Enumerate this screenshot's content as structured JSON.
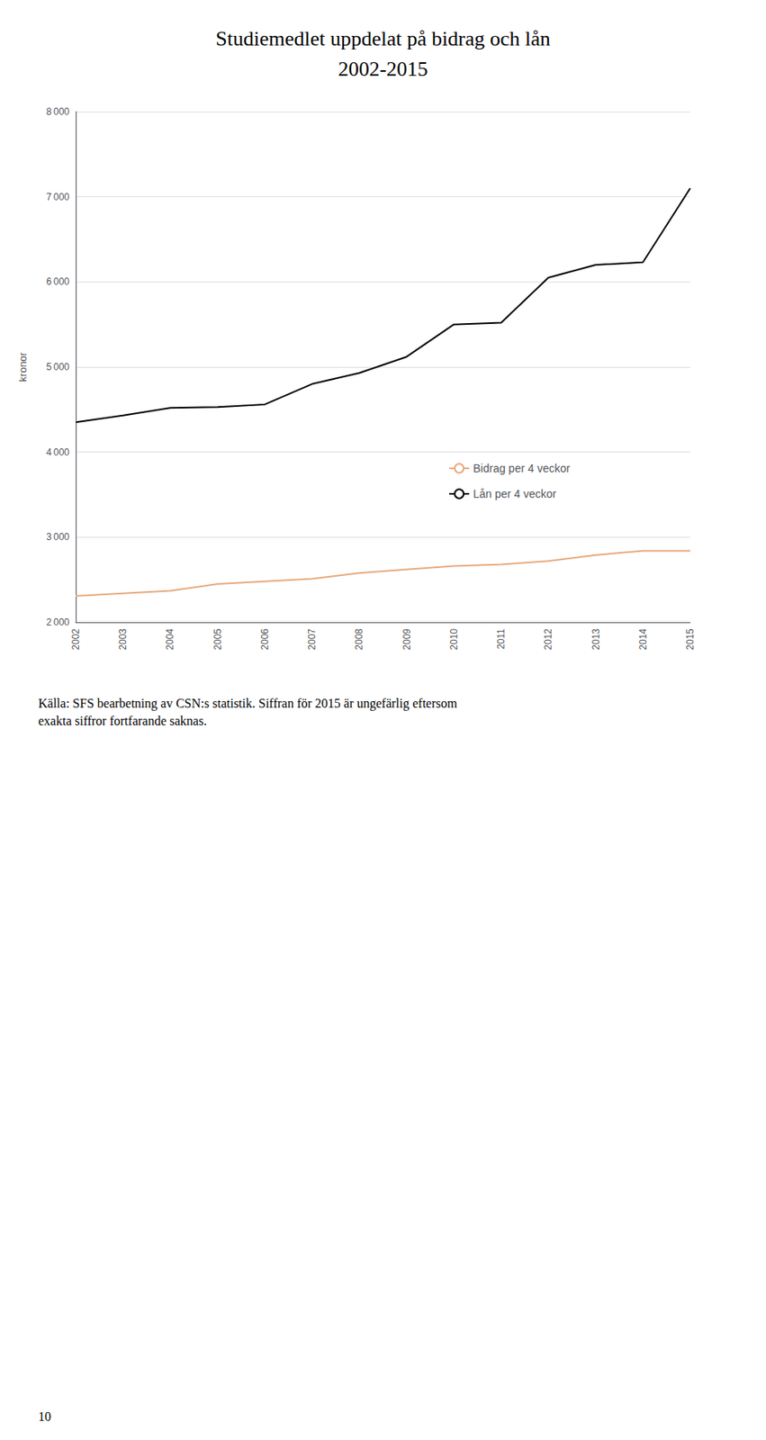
{
  "chart_data": {
    "type": "line",
    "title": "Studiemedlet uppdelat på bidrag och lån",
    "subtitle": "2002-2015",
    "ylabel": "kronor",
    "categories": [
      "2002",
      "2003",
      "2004",
      "2005",
      "2006",
      "2007",
      "2008",
      "2009",
      "2010",
      "2011",
      "2012",
      "2013",
      "2014",
      "2015"
    ],
    "series": [
      {
        "name": "Bidrag per 4 veckor",
        "color": "#E8A87C",
        "values": [
          2310,
          2340,
          2370,
          2450,
          2480,
          2510,
          2580,
          2620,
          2660,
          2680,
          2720,
          2790,
          2840,
          2840
        ]
      },
      {
        "name": "Lån per 4 veckor",
        "color": "#000000",
        "values": [
          4350,
          4430,
          4520,
          4530,
          4560,
          4800,
          4930,
          5120,
          5500,
          5520,
          6050,
          6200,
          6230,
          7100
        ]
      }
    ],
    "ylim": [
      2000,
      8000
    ],
    "yticks": [
      {
        "value": 2000,
        "label": "2 000"
      },
      {
        "value": 3000,
        "label": "3 000"
      },
      {
        "value": 4000,
        "label": "4 000"
      },
      {
        "value": 5000,
        "label": "5 000"
      },
      {
        "value": 6000,
        "label": "6 000"
      },
      {
        "value": 7000,
        "label": "7 000"
      },
      {
        "value": 8000,
        "label": "8 000"
      }
    ],
    "grid": true,
    "legend": "right",
    "annotations": [
      "Källa: SFS bearbetning av CSN:s statistik. Siffran för 2015 är ungefärlig eftersom\nexakta siffror fortfarande saknas.",
      "10"
    ]
  }
}
